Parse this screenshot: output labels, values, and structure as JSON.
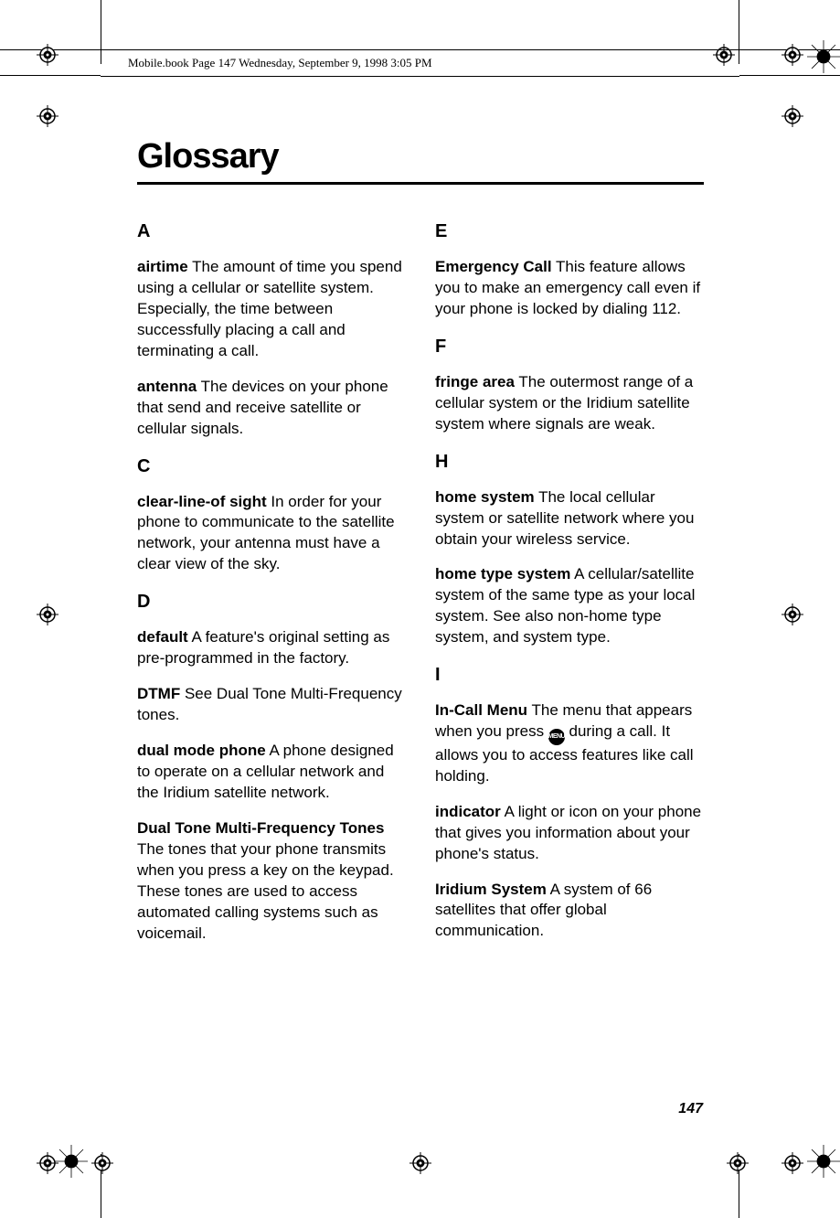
{
  "header": {
    "running_head": "Mobile.book  Page 147  Wednesday, September 9, 1998  3:05 PM"
  },
  "title": "Glossary",
  "page_number": "147",
  "menu_icon_label": "MENU",
  "left_column": {
    "sections": [
      {
        "letter": "A",
        "entries": [
          {
            "term": "airtime",
            "def": "   The amount of time you spend using a cellular or satellite system. Especially, the time between successfully placing a call and terminating a call."
          },
          {
            "term": "antenna",
            "def": "   The devices on your phone that send and receive satellite or cellular signals."
          }
        ]
      },
      {
        "letter": "C",
        "entries": [
          {
            "term": "clear-line-of sight",
            "def": "   In order for your phone to communicate to the satellite network, your antenna must have a clear view of the sky."
          }
        ]
      },
      {
        "letter": "D",
        "entries": [
          {
            "term": "default",
            "def": "   A feature's original setting as pre-programmed in the factory."
          },
          {
            "term": "DTMF",
            "def": "   See Dual Tone Multi-Frequency tones."
          },
          {
            "term": "dual mode phone",
            "def": "   A phone designed to operate on a cellular network and the Iridium satellite network."
          },
          {
            "term": "Dual Tone Multi-Frequency Tones",
            "def": "   The tones that your phone transmits when you press a key on the keypad. These tones are used to access automated calling systems such as voicemail."
          }
        ]
      }
    ]
  },
  "right_column": {
    "sections": [
      {
        "letter": "E",
        "entries": [
          {
            "term": "Emergency Call",
            "def": "   This feature allows you to make an emergency call even if your phone is locked by dialing 112."
          }
        ]
      },
      {
        "letter": "F",
        "entries": [
          {
            "term": "fringe area",
            "def": "   The outermost range of a cellular system or the Iridium satellite system where signals are weak."
          }
        ]
      },
      {
        "letter": "H",
        "entries": [
          {
            "term": "home system",
            "def": "   The local cellular system or satellite network where you obtain your wireless service."
          },
          {
            "term": "home type system",
            "def": "   A cellular/satellite system of the same type as your local system. See also non-home type system, and system type."
          }
        ]
      },
      {
        "letter": "I",
        "entries": [
          {
            "term": "In-Call Menu",
            "def_before": "   The menu that appears when you press ",
            "def_after": " during a call. It allows you to access features like call holding.",
            "has_icon": true
          },
          {
            "term": "indicator",
            "def": "   A light or icon on your phone that gives you information about your phone's status."
          },
          {
            "term": "Iridium System",
            "def": "   A system of 66 satellites that offer global communication."
          }
        ]
      }
    ]
  }
}
